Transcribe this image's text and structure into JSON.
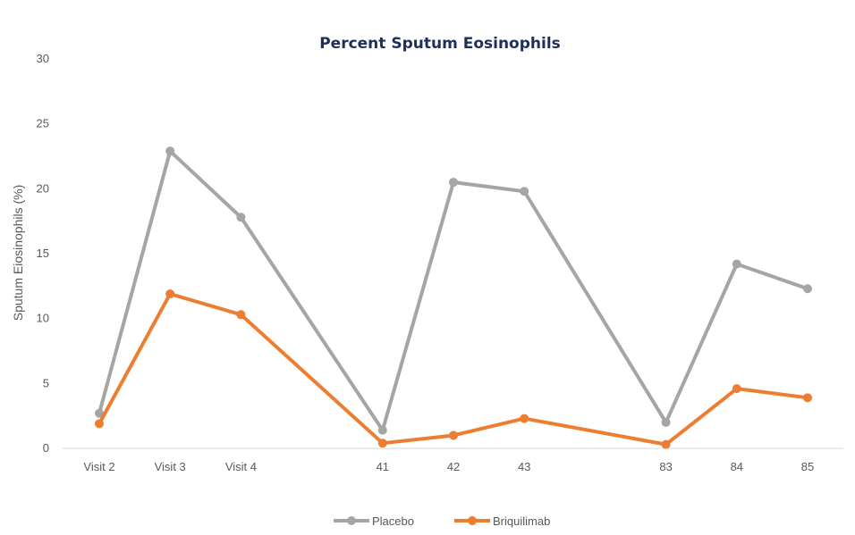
{
  "chart_data": {
    "type": "line",
    "title": "Percent Sputum Eosinophils",
    "xlabel": "",
    "ylabel": "Sputum Eiosinophils (%)",
    "categories": [
      "Visit 2",
      "Visit 3",
      "Visit 4",
      "41",
      "42",
      "43",
      "83",
      "84",
      "85"
    ],
    "x_positions": [
      0,
      1,
      2,
      4,
      5,
      6,
      8,
      9,
      10
    ],
    "yticks": [
      "0",
      "5",
      "10",
      "15",
      "20",
      "25",
      "30"
    ],
    "ylim": [
      0,
      30
    ],
    "grid": false,
    "legend_position": "bottom",
    "series": [
      {
        "name": "Placebo",
        "color": "#a5a5a5",
        "values": [
          2.7,
          22.9,
          17.8,
          1.4,
          20.5,
          19.8,
          2.0,
          14.2,
          12.3
        ]
      },
      {
        "name": "Briquilimab",
        "color": "#ed7d31",
        "values": [
          1.9,
          11.9,
          10.3,
          0.4,
          1.0,
          2.3,
          0.3,
          4.6,
          3.9
        ]
      }
    ],
    "title_color": "#1f2f5c"
  }
}
